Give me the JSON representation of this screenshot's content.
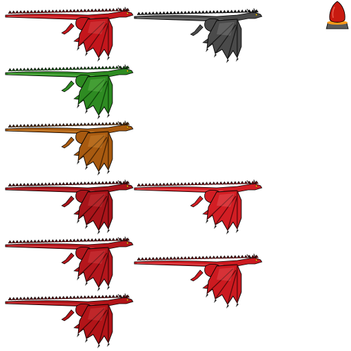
{
  "sheet": {
    "background": "#ffffff",
    "sprites": [
      {
        "id": "dragon-red",
        "color": "#c4161c",
        "dark": "#5e0a0c",
        "light": "#e0585a"
      },
      {
        "id": "dragon-black",
        "color": "#4a4a4a",
        "dark": "#1c1c1c",
        "light": "#8a8a8a"
      },
      {
        "id": "dragon-green",
        "color": "#2e8b22",
        "dark": "#0f4a0a",
        "light": "#6cc45a"
      },
      {
        "id": "dragon-bronze",
        "color": "#a85a10",
        "dark": "#4e2804",
        "light": "#d8923c"
      },
      {
        "id": "dragon-crimson-a",
        "color": "#a8141a",
        "dark": "#4c0608",
        "light": "#d24448"
      },
      {
        "id": "dragon-red-b",
        "color": "#d21e24",
        "dark": "#66080c",
        "light": "#ec6a6c"
      },
      {
        "id": "dragon-crimson-c",
        "color": "#b4161c",
        "dark": "#54080a",
        "light": "#dc4c50"
      },
      {
        "id": "dragon-red-d",
        "color": "#cc1a20",
        "dark": "#600a0c",
        "light": "#e86064"
      },
      {
        "id": "dragon-crimson-e",
        "color": "#b21418",
        "dark": "#520608",
        "light": "#d84a4e"
      }
    ],
    "egg": {
      "id": "dragon-egg",
      "shell": "#c81a10",
      "glow": "#ff9a1a",
      "base": "#5a5a5a"
    }
  }
}
